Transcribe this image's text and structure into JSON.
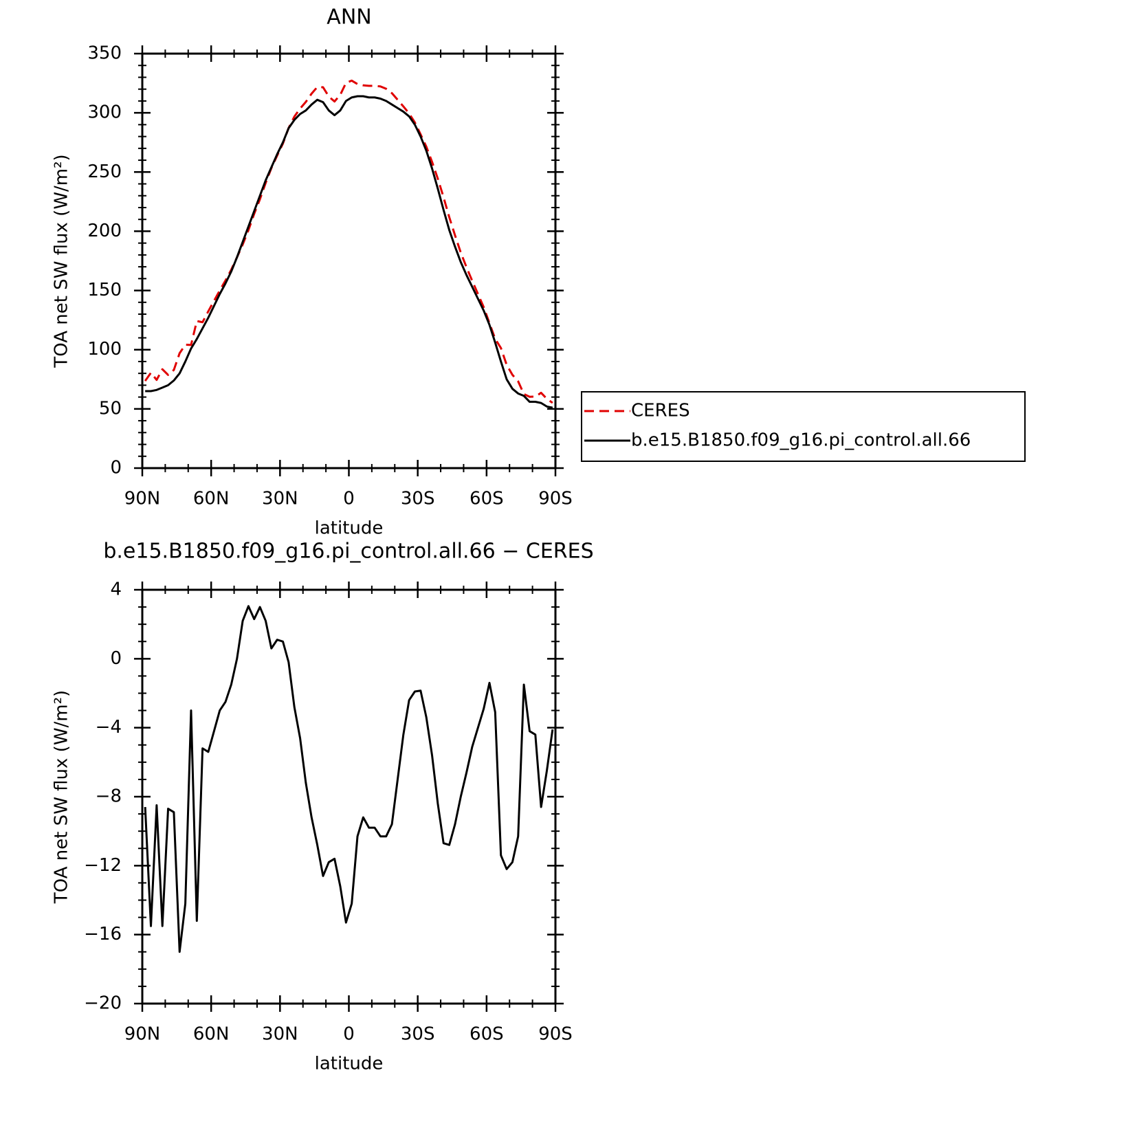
{
  "chart_data": [
    {
      "type": "line",
      "title": "ANN",
      "xlabel": "latitude",
      "ylabel": "TOA net SW flux (W/m²)",
      "x": [
        88.75,
        86.25,
        83.75,
        81.25,
        78.75,
        76.25,
        73.75,
        71.25,
        68.75,
        66.25,
        63.75,
        61.25,
        58.75,
        56.25,
        53.75,
        51.25,
        48.75,
        46.25,
        43.75,
        41.25,
        38.75,
        36.25,
        33.75,
        31.25,
        28.75,
        26.25,
        23.75,
        21.25,
        18.75,
        16.25,
        13.75,
        11.25,
        8.75,
        6.25,
        3.75,
        1.25,
        -1.25,
        -3.75,
        -6.25,
        -8.75,
        -11.25,
        -13.75,
        -16.25,
        -18.75,
        -21.25,
        -23.75,
        -26.25,
        -28.75,
        -31.25,
        -33.75,
        -36.25,
        -38.75,
        -41.25,
        -43.75,
        -46.25,
        -48.75,
        -51.25,
        -53.75,
        -56.25,
        -58.75,
        -61.25,
        -63.75,
        -66.25,
        -68.75,
        -71.25,
        -73.75,
        -76.25,
        -78.75,
        -81.25,
        -83.75,
        -86.25,
        -88.75
      ],
      "series": [
        {
          "name": "CERES",
          "color": "#e00000",
          "linestyle": "dashed",
          "values": [
            73.6,
            80.5,
            74.5,
            83.5,
            78.7,
            82.9,
            97,
            104.2,
            104,
            124.2,
            123.2,
            132.4,
            141.2,
            150,
            158.5,
            167.5,
            178,
            188.8,
            200.95,
            214.7,
            227,
            240.8,
            253.4,
            263.9,
            274,
            287.2,
            296.8,
            303.6,
            309.2,
            316.2,
            321.8,
            321.6,
            313.8,
            309.6,
            315.2,
            325.3,
            327.2,
            324.3,
            323.2,
            322.8,
            322.8,
            322.3,
            320.3,
            316.6,
            311,
            305.4,
            299.4,
            291.9,
            281.85,
            271.4,
            258.6,
            244.4,
            228.7,
            211.8,
            196.6,
            182,
            169.6,
            158.1,
            147,
            135.9,
            122.4,
            109.1,
            101.4,
            87.2,
            78.8,
            73.3,
            62.5,
            60.2,
            60.4,
            63.6,
            58.5,
            55.1
          ]
        },
        {
          "name": "b.e15.B1850.f09_g16.pi_control.all.66",
          "color": "#000000",
          "linestyle": "solid",
          "values": [
            65,
            65,
            66,
            68,
            70,
            74,
            80,
            90,
            101,
            109,
            118,
            127,
            137,
            147,
            156,
            166,
            178,
            191,
            204,
            217,
            230,
            243,
            254,
            265,
            275,
            287,
            294,
            299,
            302,
            307,
            311,
            309,
            302,
            298,
            302,
            310,
            313,
            314,
            314,
            313,
            313,
            312,
            310,
            307,
            304,
            301,
            297,
            290,
            280,
            268,
            253,
            236,
            218,
            201,
            187,
            174,
            163,
            153,
            143,
            133,
            121,
            106,
            90,
            75,
            67,
            63,
            61,
            56,
            56,
            55,
            52,
            51
          ]
        }
      ],
      "xlim": [
        90,
        -90
      ],
      "xticks": [
        {
          "value": 90,
          "label": "90N"
        },
        {
          "value": 60,
          "label": "60N"
        },
        {
          "value": 30,
          "label": "30N"
        },
        0,
        {
          "value": -30,
          "label": "30S"
        },
        {
          "value": -60,
          "label": "60S"
        },
        {
          "value": -90,
          "label": "90S"
        }
      ],
      "ylim": [
        0,
        350
      ],
      "yticks": [
        0,
        50,
        100,
        150,
        200,
        250,
        300,
        350
      ],
      "legend": "right"
    },
    {
      "type": "line",
      "title": "b.e15.B1850.f09_g16.pi_control.all.66 − CERES",
      "xlabel": "latitude",
      "ylabel": "TOA net SW flux (W/m²)",
      "x": [
        88.75,
        86.25,
        83.75,
        81.25,
        78.75,
        76.25,
        73.75,
        71.25,
        68.75,
        66.25,
        63.75,
        61.25,
        58.75,
        56.25,
        53.75,
        51.25,
        48.75,
        46.25,
        43.75,
        41.25,
        38.75,
        36.25,
        33.75,
        31.25,
        28.75,
        26.25,
        23.75,
        21.25,
        18.75,
        16.25,
        13.75,
        11.25,
        8.75,
        6.25,
        3.75,
        1.25,
        -1.25,
        -3.75,
        -6.25,
        -8.75,
        -11.25,
        -13.75,
        -16.25,
        -18.75,
        -21.25,
        -23.75,
        -26.25,
        -28.75,
        -31.25,
        -33.75,
        -36.25,
        -38.75,
        -41.25,
        -43.75,
        -46.25,
        -48.75,
        -51.25,
        -53.75,
        -56.25,
        -58.75,
        -61.25,
        -63.75,
        -66.25,
        -68.75,
        -71.25,
        -73.75,
        -76.25,
        -78.75,
        -81.25,
        -83.75,
        -86.25,
        -88.75
      ],
      "values": [
        -8.6,
        -15.5,
        -8.5,
        -15.5,
        -8.7,
        -8.9,
        -17,
        -14.2,
        -3,
        -15.2,
        -5.2,
        -5.4,
        -4.2,
        -3,
        -2.5,
        -1.5,
        0,
        2.2,
        3.05,
        2.3,
        3,
        2.2,
        0.6,
        1.1,
        1,
        -0.2,
        -2.8,
        -4.6,
        -7.2,
        -9.2,
        -10.8,
        -12.6,
        -11.8,
        -11.6,
        -13.2,
        -15.3,
        -14.2,
        -10.3,
        -9.2,
        -9.8,
        -9.8,
        -10.3,
        -10.3,
        -9.6,
        -7,
        -4.4,
        -2.4,
        -1.9,
        -1.85,
        -3.4,
        -5.6,
        -8.4,
        -10.7,
        -10.8,
        -9.6,
        -8,
        -6.6,
        -5.1,
        -4,
        -2.9,
        -1.4,
        -3.1,
        -11.4,
        -12.2,
        -11.8,
        -10.3,
        -1.5,
        -4.2,
        -4.4,
        -8.6,
        -6.5,
        -4.1
      ],
      "color": "#000000",
      "xlim": [
        90,
        -90
      ],
      "xticks": [
        {
          "value": 90,
          "label": "90N"
        },
        {
          "value": 60,
          "label": "60N"
        },
        {
          "value": 30,
          "label": "30N"
        },
        0,
        {
          "value": -30,
          "label": "30S"
        },
        {
          "value": -60,
          "label": "60S"
        },
        {
          "value": -90,
          "label": "90S"
        }
      ],
      "ylim": [
        -20,
        4
      ],
      "yticks": [
        {
          "value": -20,
          "label": "−20"
        },
        {
          "value": -16,
          "label": "−16"
        },
        {
          "value": -12,
          "label": "−12"
        },
        {
          "value": -8,
          "label": "−8"
        },
        {
          "value": -4,
          "label": "−4"
        },
        0,
        4
      ]
    }
  ]
}
